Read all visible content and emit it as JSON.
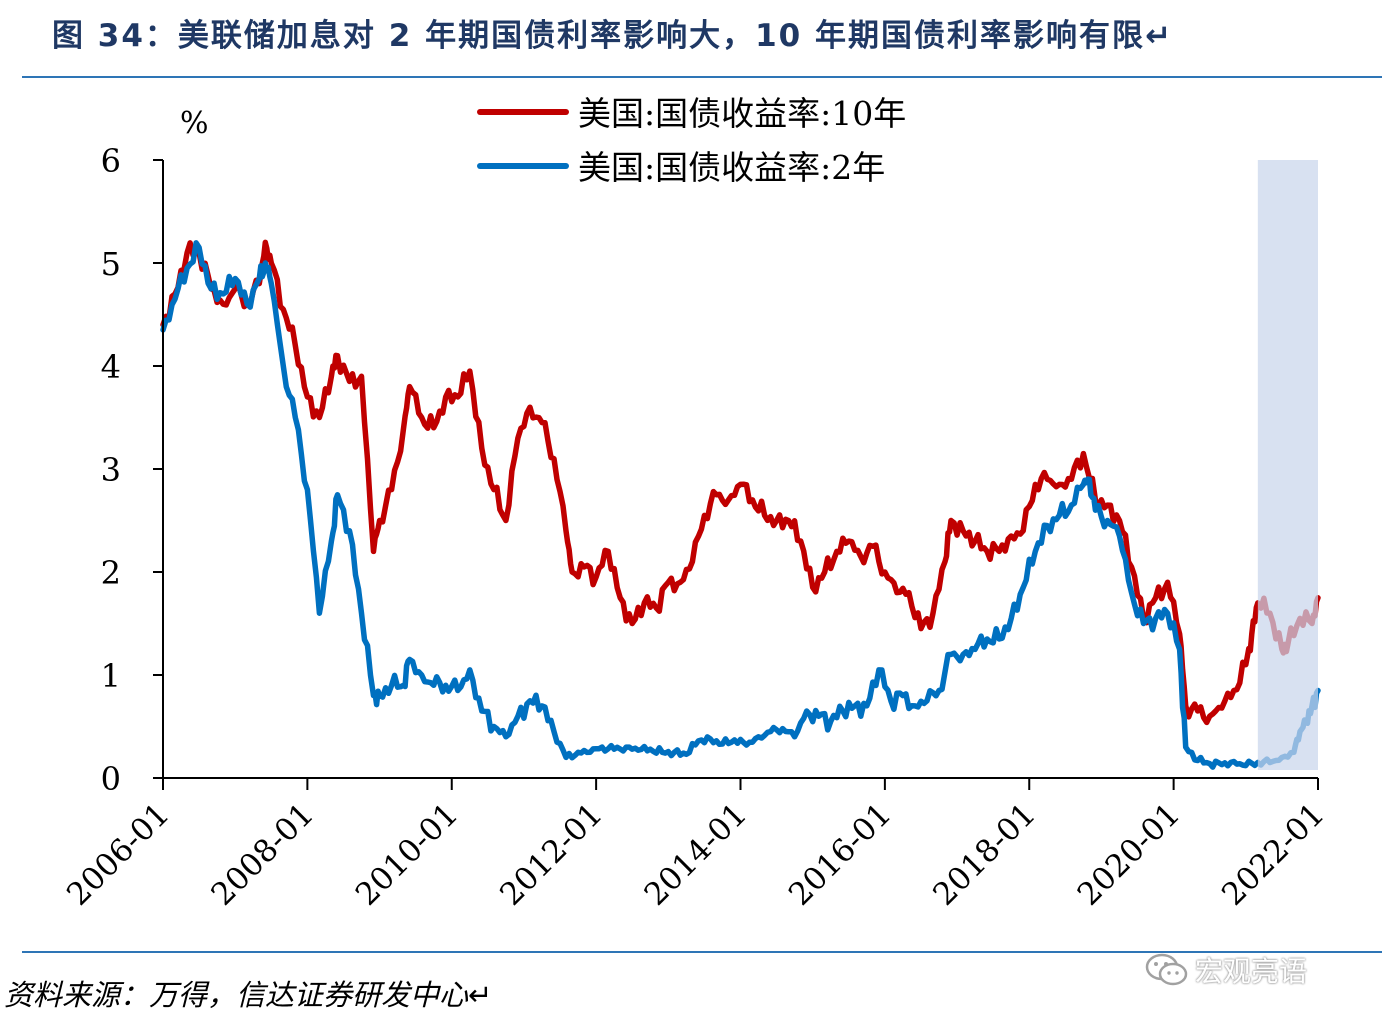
{
  "title": "图 34：美联储加息对 2 年期国债利率影响大，10 年期国债利率影响有限↵",
  "source": "资料来源：万得，信达证券研发中心↵",
  "watermark": {
    "text": "宏观亮语",
    "icon": "wechat-icon"
  },
  "chart_data": {
    "type": "line",
    "ylabel": "%",
    "ylim": [
      0,
      6
    ],
    "yticks": [
      "0",
      "1",
      "2",
      "3",
      "4",
      "5",
      "6"
    ],
    "xlim": [
      "2006-01",
      "2022-01"
    ],
    "xticks": [
      "2006-01",
      "2008-01",
      "2010-01",
      "2012-01",
      "2014-01",
      "2016-01",
      "2018-01",
      "2020-01",
      "2022-01"
    ],
    "legend_position": "top-center",
    "highlight_band": {
      "x_start": "2021-03",
      "x_end": "2022-01",
      "color": "#c9d6ec"
    },
    "series": [
      {
        "name": "美国:国债收益率:10年",
        "color": "#c00000",
        "points": [
          [
            "2006-01",
            4.4
          ],
          [
            "2006-03",
            4.7
          ],
          [
            "2006-05",
            5.1
          ],
          [
            "2006-07",
            5.1
          ],
          [
            "2006-09",
            4.75
          ],
          [
            "2006-11",
            4.6
          ],
          [
            "2007-01",
            4.75
          ],
          [
            "2007-03",
            4.6
          ],
          [
            "2007-05",
            4.8
          ],
          [
            "2007-06",
            5.2
          ],
          [
            "2007-07",
            5.0
          ],
          [
            "2007-09",
            4.55
          ],
          [
            "2007-11",
            4.2
          ],
          [
            "2008-01",
            3.7
          ],
          [
            "2008-03",
            3.5
          ],
          [
            "2008-05",
            3.9
          ],
          [
            "2008-06",
            4.1
          ],
          [
            "2008-08",
            3.85
          ],
          [
            "2008-10",
            3.9
          ],
          [
            "2008-12",
            2.2
          ],
          [
            "2009-01",
            2.5
          ],
          [
            "2009-03",
            2.8
          ],
          [
            "2009-05",
            3.4
          ],
          [
            "2009-06",
            3.8
          ],
          [
            "2009-08",
            3.5
          ],
          [
            "2009-10",
            3.4
          ],
          [
            "2009-12",
            3.7
          ],
          [
            "2010-02",
            3.7
          ],
          [
            "2010-04",
            3.95
          ],
          [
            "2010-06",
            3.2
          ],
          [
            "2010-08",
            2.8
          ],
          [
            "2010-10",
            2.5
          ],
          [
            "2010-12",
            3.3
          ],
          [
            "2011-02",
            3.6
          ],
          [
            "2011-04",
            3.45
          ],
          [
            "2011-06",
            3.1
          ],
          [
            "2011-08",
            2.4
          ],
          [
            "2011-09",
            2.0
          ],
          [
            "2011-11",
            2.05
          ],
          [
            "2012-01",
            1.95
          ],
          [
            "2012-03",
            2.2
          ],
          [
            "2012-05",
            1.75
          ],
          [
            "2012-07",
            1.5
          ],
          [
            "2012-09",
            1.7
          ],
          [
            "2012-11",
            1.65
          ],
          [
            "2013-01",
            1.9
          ],
          [
            "2013-03",
            1.9
          ],
          [
            "2013-05",
            2.1
          ],
          [
            "2013-07",
            2.55
          ],
          [
            "2013-09",
            2.75
          ],
          [
            "2013-11",
            2.7
          ],
          [
            "2014-01",
            2.85
          ],
          [
            "2014-03",
            2.7
          ],
          [
            "2014-05",
            2.55
          ],
          [
            "2014-07",
            2.5
          ],
          [
            "2014-09",
            2.5
          ],
          [
            "2014-11",
            2.3
          ],
          [
            "2015-01",
            1.85
          ],
          [
            "2015-03",
            2.0
          ],
          [
            "2015-05",
            2.2
          ],
          [
            "2015-07",
            2.3
          ],
          [
            "2015-09",
            2.15
          ],
          [
            "2015-11",
            2.25
          ],
          [
            "2016-01",
            2.0
          ],
          [
            "2016-03",
            1.8
          ],
          [
            "2016-05",
            1.8
          ],
          [
            "2016-07",
            1.45
          ],
          [
            "2016-09",
            1.6
          ],
          [
            "2016-11",
            2.1
          ],
          [
            "2016-12",
            2.5
          ],
          [
            "2017-02",
            2.4
          ],
          [
            "2017-04",
            2.3
          ],
          [
            "2017-06",
            2.2
          ],
          [
            "2017-08",
            2.2
          ],
          [
            "2017-10",
            2.35
          ],
          [
            "2017-12",
            2.4
          ],
          [
            "2018-02",
            2.85
          ],
          [
            "2018-04",
            2.9
          ],
          [
            "2018-06",
            2.85
          ],
          [
            "2018-08",
            2.9
          ],
          [
            "2018-10",
            3.15
          ],
          [
            "2018-12",
            2.7
          ],
          [
            "2019-02",
            2.65
          ],
          [
            "2019-04",
            2.5
          ],
          [
            "2019-06",
            2.05
          ],
          [
            "2019-08",
            1.55
          ],
          [
            "2019-10",
            1.75
          ],
          [
            "2019-12",
            1.9
          ],
          [
            "2020-02",
            1.4
          ],
          [
            "2020-03",
            0.7
          ],
          [
            "2020-05",
            0.65
          ],
          [
            "2020-07",
            0.6
          ],
          [
            "2020-09",
            0.68
          ],
          [
            "2020-11",
            0.85
          ],
          [
            "2021-01",
            1.1
          ],
          [
            "2021-02",
            1.4
          ],
          [
            "2021-03",
            1.7
          ],
          [
            "2021-05",
            1.6
          ],
          [
            "2021-07",
            1.25
          ],
          [
            "2021-08",
            1.3
          ],
          [
            "2021-10",
            1.55
          ],
          [
            "2021-12",
            1.5
          ],
          [
            "2022-01",
            1.75
          ]
        ]
      },
      {
        "name": "美国:国债收益率:2年",
        "color": "#0070c0",
        "points": [
          [
            "2006-01",
            4.35
          ],
          [
            "2006-03",
            4.65
          ],
          [
            "2006-05",
            4.95
          ],
          [
            "2006-07",
            5.15
          ],
          [
            "2006-09",
            4.75
          ],
          [
            "2006-11",
            4.7
          ],
          [
            "2007-01",
            4.85
          ],
          [
            "2007-03",
            4.6
          ],
          [
            "2007-05",
            4.85
          ],
          [
            "2007-06",
            5.0
          ],
          [
            "2007-07",
            4.8
          ],
          [
            "2007-09",
            4.0
          ],
          [
            "2007-11",
            3.5
          ],
          [
            "2008-01",
            2.8
          ],
          [
            "2008-03",
            1.6
          ],
          [
            "2008-05",
            2.3
          ],
          [
            "2008-06",
            2.75
          ],
          [
            "2008-08",
            2.4
          ],
          [
            "2008-10",
            1.6
          ],
          [
            "2008-12",
            0.8
          ],
          [
            "2009-01",
            0.8
          ],
          [
            "2009-03",
            0.9
          ],
          [
            "2009-05",
            0.9
          ],
          [
            "2009-06",
            1.15
          ],
          [
            "2009-08",
            1.0
          ],
          [
            "2009-10",
            0.9
          ],
          [
            "2009-12",
            0.9
          ],
          [
            "2010-02",
            0.85
          ],
          [
            "2010-04",
            1.05
          ],
          [
            "2010-06",
            0.65
          ],
          [
            "2010-08",
            0.5
          ],
          [
            "2010-10",
            0.4
          ],
          [
            "2010-12",
            0.6
          ],
          [
            "2011-02",
            0.75
          ],
          [
            "2011-04",
            0.7
          ],
          [
            "2011-06",
            0.45
          ],
          [
            "2011-08",
            0.2
          ],
          [
            "2011-10",
            0.25
          ],
          [
            "2011-12",
            0.25
          ],
          [
            "2012-02",
            0.3
          ],
          [
            "2012-04",
            0.28
          ],
          [
            "2012-06",
            0.3
          ],
          [
            "2012-08",
            0.27
          ],
          [
            "2012-10",
            0.28
          ],
          [
            "2012-12",
            0.25
          ],
          [
            "2013-02",
            0.25
          ],
          [
            "2013-04",
            0.23
          ],
          [
            "2013-06",
            0.36
          ],
          [
            "2013-08",
            0.38
          ],
          [
            "2013-10",
            0.33
          ],
          [
            "2013-12",
            0.37
          ],
          [
            "2014-02",
            0.32
          ],
          [
            "2014-04",
            0.4
          ],
          [
            "2014-06",
            0.45
          ],
          [
            "2014-08",
            0.48
          ],
          [
            "2014-10",
            0.4
          ],
          [
            "2014-12",
            0.65
          ],
          [
            "2015-02",
            0.6
          ],
          [
            "2015-04",
            0.55
          ],
          [
            "2015-06",
            0.65
          ],
          [
            "2015-08",
            0.7
          ],
          [
            "2015-10",
            0.7
          ],
          [
            "2015-12",
            1.05
          ],
          [
            "2016-02",
            0.75
          ],
          [
            "2016-04",
            0.8
          ],
          [
            "2016-06",
            0.7
          ],
          [
            "2016-08",
            0.75
          ],
          [
            "2016-10",
            0.85
          ],
          [
            "2016-12",
            1.2
          ],
          [
            "2017-02",
            1.2
          ],
          [
            "2017-04",
            1.25
          ],
          [
            "2017-06",
            1.35
          ],
          [
            "2017-08",
            1.35
          ],
          [
            "2017-10",
            1.55
          ],
          [
            "2017-12",
            1.85
          ],
          [
            "2018-02",
            2.2
          ],
          [
            "2018-04",
            2.45
          ],
          [
            "2018-06",
            2.55
          ],
          [
            "2018-08",
            2.65
          ],
          [
            "2018-10",
            2.85
          ],
          [
            "2018-11",
            2.9
          ],
          [
            "2018-12",
            2.6
          ],
          [
            "2019-02",
            2.5
          ],
          [
            "2019-04",
            2.35
          ],
          [
            "2019-06",
            1.8
          ],
          [
            "2019-08",
            1.5
          ],
          [
            "2019-10",
            1.55
          ],
          [
            "2019-12",
            1.6
          ],
          [
            "2020-02",
            1.25
          ],
          [
            "2020-03",
            0.3
          ],
          [
            "2020-05",
            0.17
          ],
          [
            "2020-07",
            0.14
          ],
          [
            "2020-09",
            0.13
          ],
          [
            "2020-11",
            0.16
          ],
          [
            "2021-01",
            0.12
          ],
          [
            "2021-03",
            0.15
          ],
          [
            "2021-05",
            0.15
          ],
          [
            "2021-07",
            0.2
          ],
          [
            "2021-09",
            0.25
          ],
          [
            "2021-10",
            0.45
          ],
          [
            "2021-11",
            0.55
          ],
          [
            "2021-12",
            0.7
          ],
          [
            "2022-01",
            0.85
          ]
        ]
      }
    ]
  }
}
